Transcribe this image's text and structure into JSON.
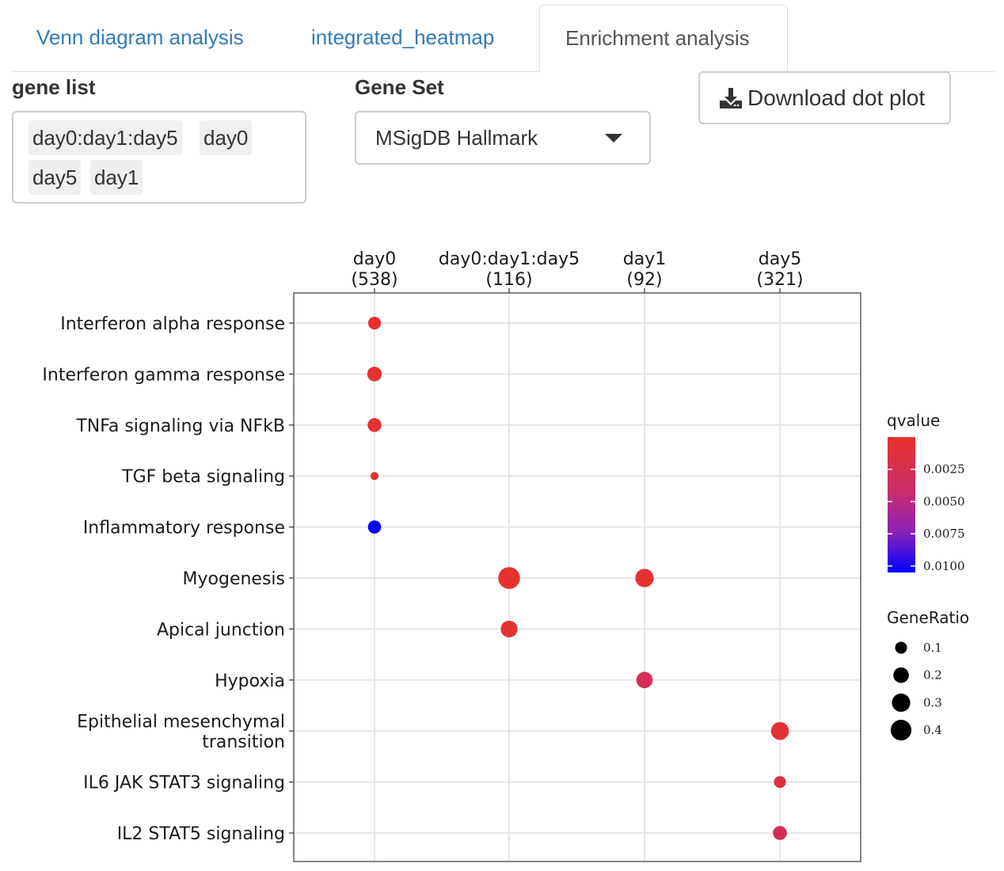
{
  "tabs": [
    {
      "label": "Venn diagram analysis",
      "active": false
    },
    {
      "label": "integrated_heatmap",
      "active": false
    },
    {
      "label": "Enrichment analysis",
      "active": true
    }
  ],
  "controls": {
    "gene_list_label": "gene list",
    "gene_list_selected": [
      "day0:day1:day5",
      "day0",
      "day5",
      "day1"
    ],
    "gene_set_label": "Gene Set",
    "gene_set_value": "MSigDB Hallmark",
    "download_button": "Download dot plot",
    "download_icon": "download-icon"
  },
  "chart_data": {
    "type": "scatter",
    "columns": [
      {
        "label": "day0",
        "count": "(538)"
      },
      {
        "label": "day0:day1:day5",
        "count": "(116)"
      },
      {
        "label": "day1",
        "count": "(92)"
      },
      {
        "label": "day5",
        "count": "(321)"
      }
    ],
    "rows": [
      "Interferon alpha response",
      "Interferon gamma response",
      "TNFa signaling via NFkB",
      "TGF beta signaling",
      "Inflammatory response",
      "Myogenesis",
      "Apical junction",
      "Hypoxia",
      "Epithelial mesenchymal transition",
      "IL6 JAK STAT3 signaling",
      "IL2 STAT5 signaling"
    ],
    "points": [
      {
        "row": 0,
        "col": 0,
        "gene_ratio": 0.12,
        "qvalue": 0.0003
      },
      {
        "row": 1,
        "col": 0,
        "gene_ratio": 0.17,
        "qvalue": 0.0004
      },
      {
        "row": 2,
        "col": 0,
        "gene_ratio": 0.15,
        "qvalue": 0.0004
      },
      {
        "row": 3,
        "col": 0,
        "gene_ratio": 0.03,
        "qvalue": 0.0006
      },
      {
        "row": 4,
        "col": 0,
        "gene_ratio": 0.13,
        "qvalue": 0.0105
      },
      {
        "row": 5,
        "col": 1,
        "gene_ratio": 0.45,
        "qvalue": 0.0002
      },
      {
        "row": 6,
        "col": 1,
        "gene_ratio": 0.24,
        "qvalue": 0.0005
      },
      {
        "row": 5,
        "col": 2,
        "gene_ratio": 0.3,
        "qvalue": 0.0005
      },
      {
        "row": 7,
        "col": 2,
        "gene_ratio": 0.23,
        "qvalue": 0.0028
      },
      {
        "row": 8,
        "col": 3,
        "gene_ratio": 0.28,
        "qvalue": 0.0006
      },
      {
        "row": 9,
        "col": 3,
        "gene_ratio": 0.1,
        "qvalue": 0.0012
      },
      {
        "row": 10,
        "col": 3,
        "gene_ratio": 0.15,
        "qvalue": 0.0028
      }
    ],
    "legend_color": {
      "title": "qvalue",
      "ticks": [
        "0.0025",
        "0.0050",
        "0.0075",
        "0.0100"
      ],
      "tick_values": [
        0.0025,
        0.005,
        0.0075,
        0.01
      ],
      "range": [
        0.0,
        0.0105
      ],
      "low_color": "#e8312a",
      "high_color": "#0000ff"
    },
    "legend_size": {
      "title": "GeneRatio",
      "ticks": [
        "0.1",
        "0.2",
        "0.3",
        "0.4"
      ],
      "tick_values": [
        0.1,
        0.2,
        0.3,
        0.4
      ]
    },
    "grid": true,
    "legend_position": "right"
  }
}
